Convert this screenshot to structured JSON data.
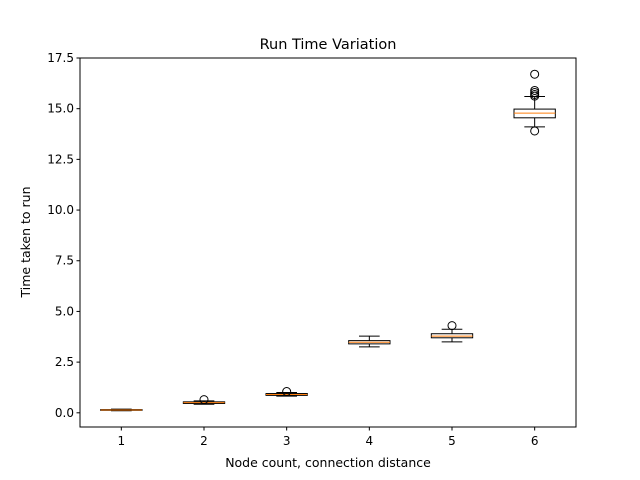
{
  "chart_data": {
    "type": "boxplot",
    "title": "Run Time Variation",
    "xlabel": "Node count, connection distance",
    "ylabel": "Time taken to run",
    "categories": [
      "1",
      "2",
      "3",
      "4",
      "5",
      "6"
    ],
    "ylim": [
      -0.7,
      17.5
    ],
    "yticks": [
      0.0,
      2.5,
      5.0,
      7.5,
      10.0,
      12.5,
      15.0,
      17.5
    ],
    "ytick_labels": [
      "0.0",
      "2.5",
      "5.0",
      "7.5",
      "10.0",
      "12.5",
      "15.0",
      "17.5"
    ],
    "grid": false,
    "median_color": "#ff7f0e",
    "box_color": "#000000",
    "boxes": [
      {
        "category": "1",
        "whisker_low": 0.1,
        "q1": 0.12,
        "median": 0.14,
        "q3": 0.16,
        "whisker_high": 0.18,
        "outliers": []
      },
      {
        "category": "2",
        "whisker_low": 0.42,
        "q1": 0.46,
        "median": 0.5,
        "q3": 0.54,
        "whisker_high": 0.59,
        "outliers": [
          0.65
        ]
      },
      {
        "category": "3",
        "whisker_low": 0.82,
        "q1": 0.86,
        "median": 0.9,
        "q3": 0.95,
        "whisker_high": 1.0,
        "outliers": [
          1.05
        ]
      },
      {
        "category": "4",
        "whisker_low": 3.25,
        "q1": 3.4,
        "median": 3.48,
        "q3": 3.56,
        "whisker_high": 3.78,
        "outliers": []
      },
      {
        "category": "5",
        "whisker_low": 3.5,
        "q1": 3.7,
        "median": 3.78,
        "q3": 3.9,
        "whisker_high": 4.12,
        "outliers": [
          4.3
        ]
      },
      {
        "category": "6",
        "whisker_low": 14.1,
        "q1": 14.55,
        "median": 14.78,
        "q3": 14.98,
        "whisker_high": 15.6,
        "outliers": [
          13.9,
          15.62,
          15.7,
          15.8,
          15.9,
          16.7
        ]
      }
    ]
  }
}
